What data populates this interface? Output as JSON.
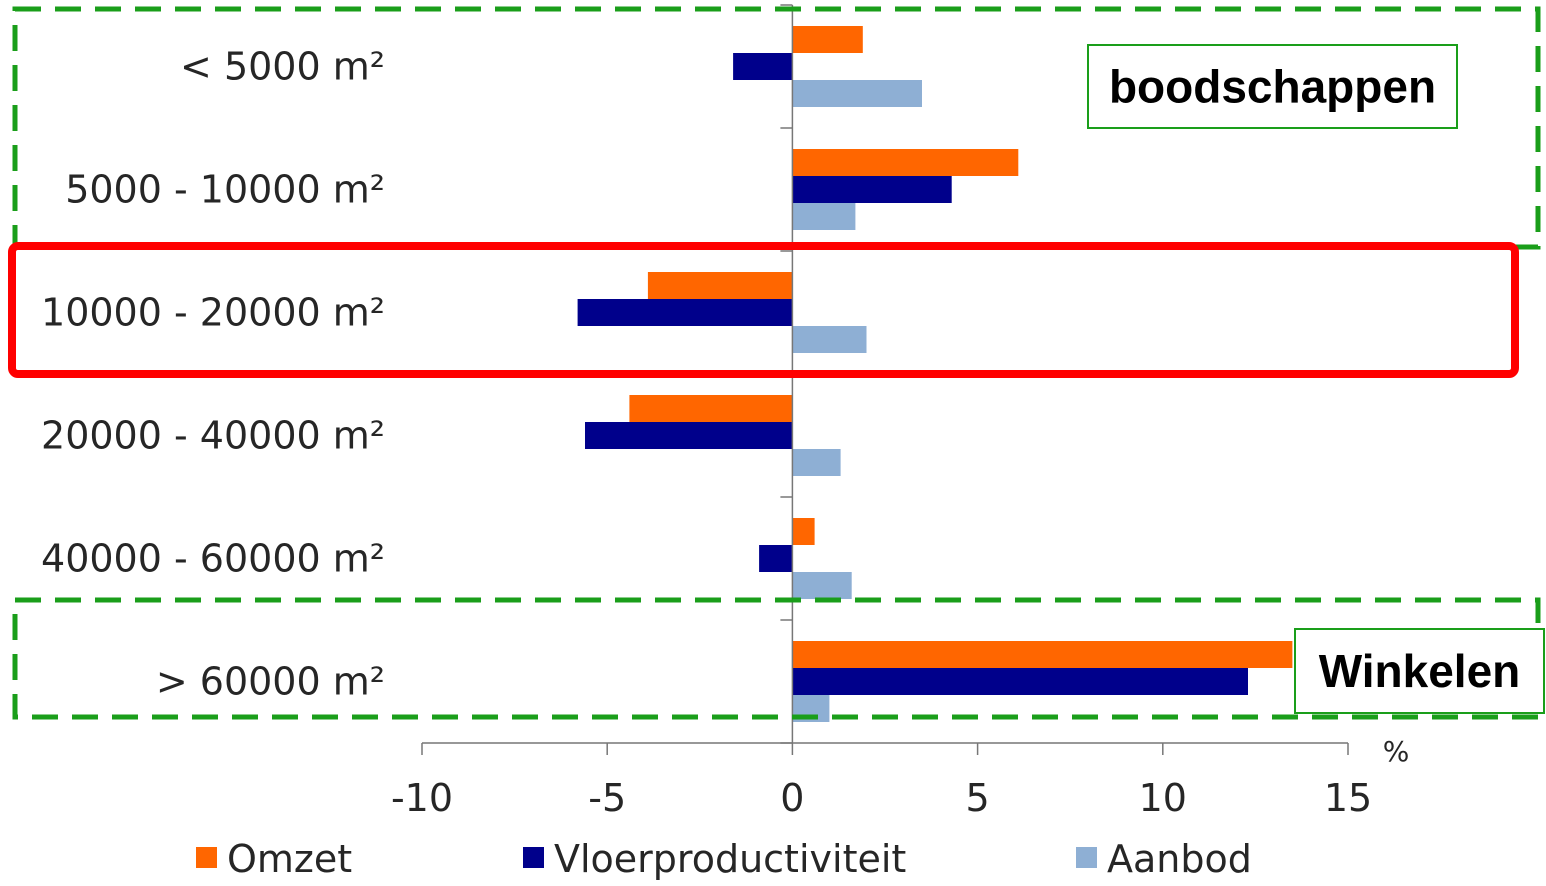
{
  "chart_data": {
    "type": "bar",
    "orientation": "horizontal",
    "categories": [
      "< 5000 m²",
      "5000 - 10000 m²",
      "10000 - 20000 m²",
      "20000 - 40000 m²",
      "40000 - 60000 m²",
      "> 60000 m²"
    ],
    "series": [
      {
        "name": "Omzet",
        "color": "#FF6600",
        "values": [
          1.9,
          6.1,
          -3.9,
          -4.4,
          0.6,
          13.5
        ]
      },
      {
        "name": "Vloerproductiviteit",
        "color": "#00008B",
        "values": [
          -1.6,
          4.3,
          -5.8,
          -5.6,
          -0.9,
          12.3
        ]
      },
      {
        "name": "Aanbod",
        "color": "#8EAFD4",
        "values": [
          3.5,
          1.7,
          2.0,
          1.3,
          1.6,
          1.0
        ]
      }
    ],
    "xlim": [
      -10,
      15
    ],
    "xticks": [
      -10,
      -5,
      0,
      5,
      10,
      15
    ],
    "xunit": "%",
    "grid": false,
    "legend_position": "bottom",
    "annotations": [
      {
        "text": "boodschappen",
        "style": "green-dashed-group",
        "applies_to": [
          "< 5000 m²",
          "5000 - 10000 m²"
        ]
      },
      {
        "text": "",
        "style": "red-highlight",
        "applies_to": [
          "10000 - 20000 m²"
        ]
      },
      {
        "text": "Winkelen",
        "style": "green-dashed-group",
        "applies_to": [
          "> 60000 m²"
        ]
      }
    ]
  }
}
